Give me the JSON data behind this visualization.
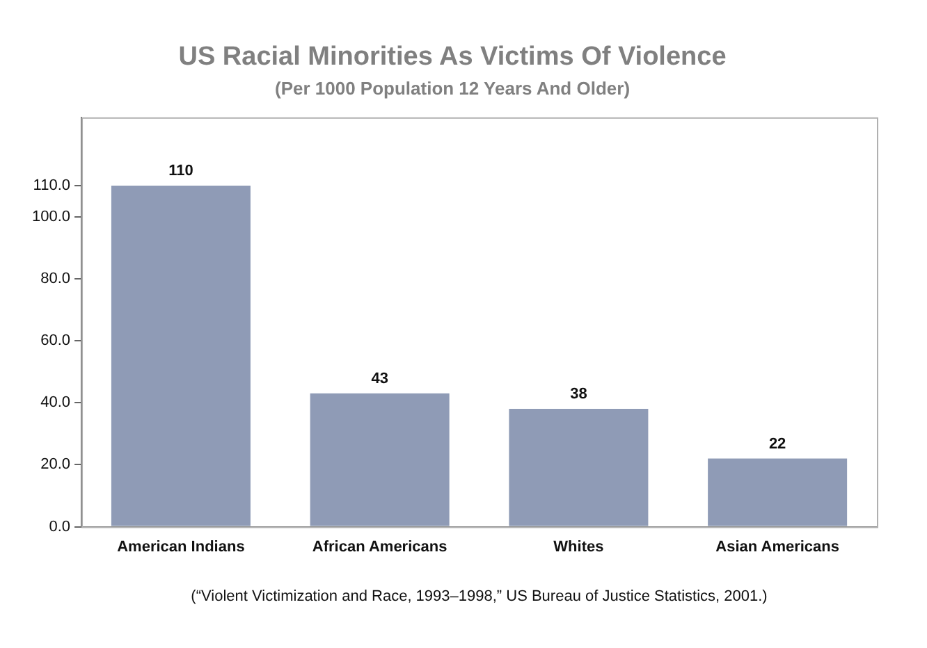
{
  "chart_data": {
    "type": "bar",
    "title": "US Racial Minorities As Victims Of Violence",
    "subtitle": "(Per 1000 Population 12 Years And Older)",
    "categories": [
      "American Indians",
      "African Americans",
      "Whites",
      "Asian Americans"
    ],
    "values": [
      110,
      43,
      38,
      22
    ],
    "color": "#8f9bb6",
    "ylim": [
      0,
      132
    ],
    "yticks": [
      {
        "value": 0,
        "label": "0.0"
      },
      {
        "value": 20,
        "label": "20.0"
      },
      {
        "value": 40,
        "label": "40.0"
      },
      {
        "value": 60,
        "label": "60.0"
      },
      {
        "value": 80,
        "label": "80.0"
      },
      {
        "value": 100,
        "label": "100.0"
      },
      {
        "value": 110,
        "label": "110.0"
      }
    ],
    "grid": false,
    "data_labels": true,
    "annotations": [
      "(“Violent Victimization and Race, 1993–1998,” US Bureau of Justice Statistics, 2001.)"
    ]
  }
}
